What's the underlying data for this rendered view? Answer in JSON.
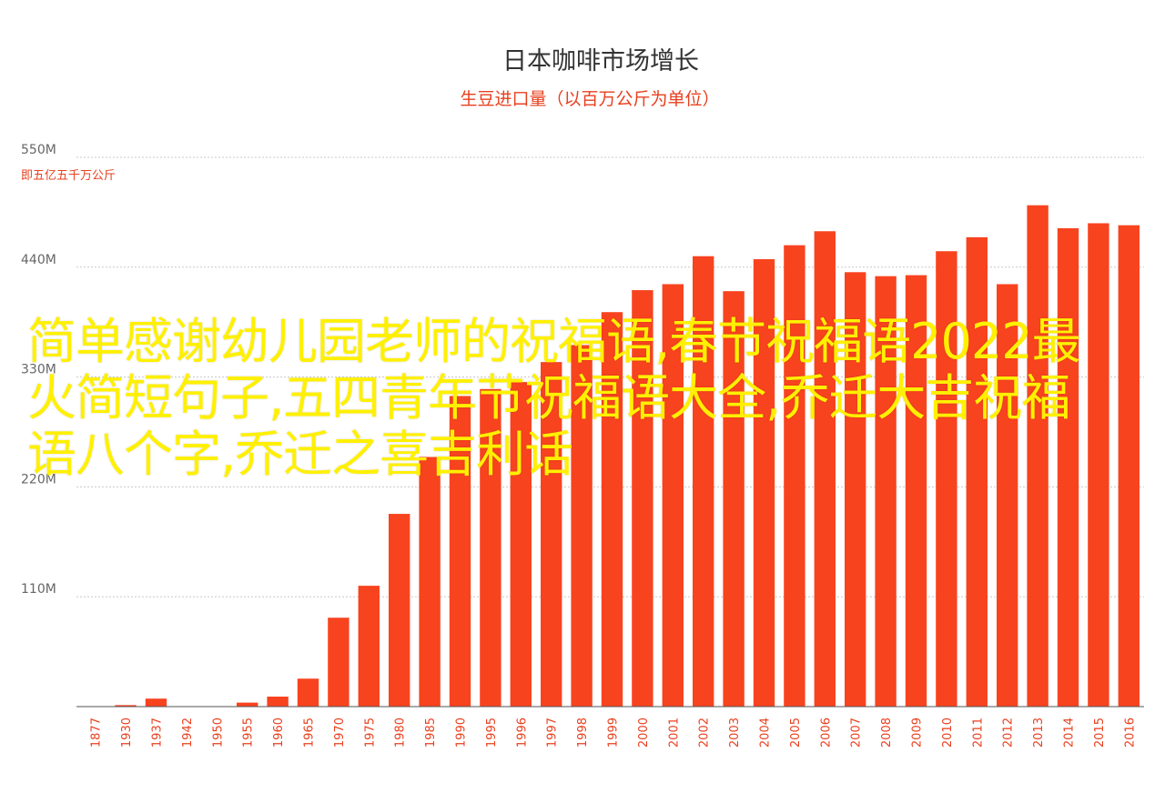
{
  "chart_data": {
    "type": "bar",
    "title": "日本咖啡市场增长",
    "subtitle": "生豆进口量（以百万公斤为单位）",
    "unit_note": "即五亿五千万公斤",
    "y_tick_labels": [
      "550M",
      "440M",
      "330M",
      "220M",
      "110M"
    ],
    "y_ticks": [
      550,
      440,
      330,
      220,
      110
    ],
    "ylim": [
      0,
      550
    ],
    "grid": true,
    "bar_color": "#f8431f",
    "categories": [
      "1877",
      "1930",
      "1937",
      "1942",
      "1950",
      "1955",
      "1960",
      "1965",
      "1970",
      "1975",
      "1980",
      "1985",
      "1990",
      "1995",
      "1996",
      "1997",
      "1998",
      "1999",
      "2000",
      "2001",
      "2002",
      "2003",
      "2004",
      "2005",
      "2006",
      "2007",
      "2008",
      "2009",
      "2010",
      "2011",
      "2012",
      "2013",
      "2014",
      "2015",
      "2016"
    ],
    "values": [
      0,
      1.5,
      8,
      0,
      0,
      4,
      10,
      28,
      89,
      121,
      193,
      250,
      311,
      318,
      325,
      345,
      362,
      395,
      417,
      423,
      451,
      416,
      448,
      462,
      476,
      435,
      431,
      432,
      456,
      470,
      423,
      502,
      479,
      484,
      482
    ]
  },
  "overlay_text": "简单感谢幼儿园老师的祝福语,春节祝福语2022最火简短句子,五四青年节祝福语大全,乔迁大吉祝福语八个字,乔迁之喜吉利话"
}
